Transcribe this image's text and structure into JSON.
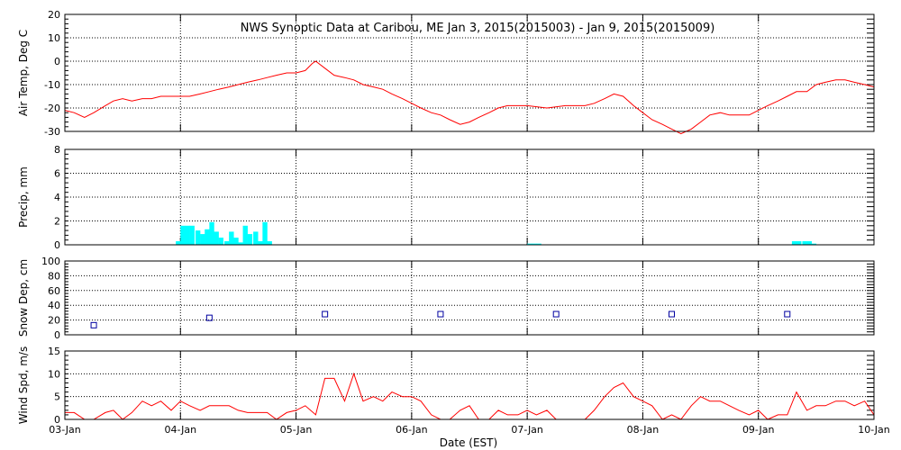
{
  "title": "NWS Synoptic Data at Caribou, ME   Jan  3, 2015(2015003) - Jan  9, 2015(2015009)",
  "xlabel": "Date (EST)",
  "x_tick_labels": [
    "03-Jan",
    "04-Jan",
    "05-Jan",
    "06-Jan",
    "07-Jan",
    "08-Jan",
    "09-Jan",
    "10-Jan"
  ],
  "colors": {
    "temp": "#ff0000",
    "precip": "#00ffff",
    "snow": "#0000a0",
    "wind": "#ff0000",
    "axis": "#000000"
  },
  "chart_data": [
    {
      "type": "line",
      "name": "air_temp",
      "ylabel": "Air Temp, Deg C",
      "ylim": [
        -30,
        20
      ],
      "yticks": [
        20,
        10,
        0,
        -10,
        -20,
        -30
      ],
      "xlim": [
        0,
        7
      ],
      "grid": true,
      "x": [
        0.0,
        0.08,
        0.17,
        0.25,
        0.35,
        0.42,
        0.5,
        0.58,
        0.67,
        0.75,
        0.83,
        0.92,
        1.0,
        1.08,
        1.17,
        1.25,
        1.33,
        1.42,
        1.5,
        1.58,
        1.67,
        1.75,
        1.83,
        1.92,
        2.0,
        2.08,
        2.14,
        2.17,
        2.25,
        2.33,
        2.42,
        2.5,
        2.58,
        2.67,
        2.75,
        2.83,
        2.92,
        3.0,
        3.08,
        3.17,
        3.25,
        3.33,
        3.42,
        3.5,
        3.58,
        3.67,
        3.75,
        3.83,
        3.92,
        4.0,
        4.17,
        4.33,
        4.5,
        4.58,
        4.67,
        4.75,
        4.83,
        4.92,
        5.0,
        5.08,
        5.17,
        5.25,
        5.33,
        5.42,
        5.5,
        5.58,
        5.67,
        5.75,
        5.83,
        5.92,
        6.0,
        6.08,
        6.17,
        6.25,
        6.33,
        6.42,
        6.5,
        6.58,
        6.67,
        6.75,
        6.83,
        6.92,
        7.0
      ],
      "values": [
        -21,
        -22,
        -24,
        -22,
        -19,
        -17,
        -16,
        -17,
        -16,
        -16,
        -15,
        -15,
        -15,
        -15,
        -14,
        -13,
        -12,
        -11,
        -10,
        -9,
        -8,
        -7,
        -6,
        -5,
        -5,
        -4,
        -1,
        0,
        -3,
        -6,
        -7,
        -8,
        -10,
        -11,
        -12,
        -14,
        -16,
        -18,
        -20,
        -22,
        -23,
        -25,
        -27,
        -26,
        -24,
        -22,
        -20,
        -19,
        -19,
        -19,
        -20,
        -19,
        -19,
        -18,
        -16,
        -14,
        -15,
        -19,
        -22,
        -25,
        -27,
        -29,
        -31,
        -29,
        -26,
        -23,
        -22,
        -23,
        -23,
        -23,
        -21,
        -19,
        -17,
        -15,
        -13,
        -13,
        -10,
        -9,
        -8,
        -8,
        -9,
        -10,
        -11
      ]
    },
    {
      "type": "bar",
      "name": "precip",
      "ylabel": "Precip, mm",
      "ylim": [
        0,
        8
      ],
      "yticks": [
        8,
        6,
        4,
        2,
        0
      ],
      "xlim": [
        0,
        7
      ],
      "grid": true,
      "bin_width": 0.042,
      "x": [
        0.96,
        1.0,
        1.04,
        1.08,
        1.13,
        1.17,
        1.21,
        1.25,
        1.29,
        1.33,
        1.38,
        1.42,
        1.46,
        1.5,
        1.54,
        1.58,
        1.63,
        1.67,
        1.71,
        1.75,
        4.0,
        4.04,
        4.08,
        6.29,
        6.33,
        6.38,
        6.42,
        6.46
      ],
      "values": [
        0.3,
        1.6,
        1.6,
        1.6,
        1.2,
        0.9,
        1.3,
        1.9,
        1.1,
        0.6,
        0.3,
        1.1,
        0.6,
        0.2,
        1.6,
        0.9,
        1.1,
        0.3,
        1.9,
        0.3,
        0.1,
        0.1,
        0.1,
        0.3,
        0.3,
        0.3,
        0.3,
        0.1
      ]
    },
    {
      "type": "scatter",
      "name": "snow_depth",
      "ylabel": "Snow Dep, cm",
      "ylim": [
        0,
        100
      ],
      "yticks": [
        100,
        80,
        60,
        40,
        20,
        0
      ],
      "xlim": [
        0,
        7
      ],
      "grid": true,
      "x": [
        0.25,
        1.25,
        2.25,
        3.25,
        4.25,
        5.25,
        6.25
      ],
      "values": [
        13,
        23,
        28,
        28,
        28,
        28,
        28
      ]
    },
    {
      "type": "line",
      "name": "wind_speed",
      "ylabel": "Wind Spd, m/s",
      "ylim": [
        0,
        15
      ],
      "yticks": [
        15,
        10,
        5,
        0
      ],
      "xlim": [
        0,
        7
      ],
      "grid": true,
      "x": [
        0.0,
        0.08,
        0.17,
        0.25,
        0.35,
        0.42,
        0.5,
        0.58,
        0.67,
        0.75,
        0.83,
        0.92,
        1.0,
        1.08,
        1.17,
        1.25,
        1.33,
        1.42,
        1.5,
        1.58,
        1.67,
        1.75,
        1.83,
        1.92,
        2.0,
        2.08,
        2.17,
        2.25,
        2.33,
        2.42,
        2.5,
        2.58,
        2.67,
        2.75,
        2.83,
        2.92,
        3.0,
        3.08,
        3.17,
        3.25,
        3.33,
        3.42,
        3.5,
        3.58,
        3.67,
        3.75,
        3.83,
        3.92,
        4.0,
        4.08,
        4.17,
        4.25,
        4.33,
        4.42,
        4.5,
        4.58,
        4.67,
        4.75,
        4.83,
        4.92,
        5.0,
        5.08,
        5.17,
        5.25,
        5.33,
        5.42,
        5.5,
        5.58,
        5.67,
        5.75,
        5.83,
        5.92,
        6.0,
        6.08,
        6.17,
        6.25,
        6.33,
        6.42,
        6.5,
        6.58,
        6.67,
        6.75,
        6.83,
        6.92,
        7.0
      ],
      "values": [
        1.5,
        1.5,
        0,
        0,
        1.5,
        2,
        0,
        1.5,
        4,
        3,
        4,
        2,
        4,
        3,
        2,
        3,
        3,
        3,
        2,
        1.5,
        1.5,
        1.5,
        0,
        1.5,
        2,
        3,
        1,
        9,
        9,
        4,
        10,
        4,
        5,
        4,
        6,
        5,
        5,
        4,
        1,
        0,
        0,
        2,
        3,
        0,
        0,
        2,
        1,
        1,
        2,
        1,
        2,
        0,
        0,
        0,
        0,
        2,
        5,
        7,
        8,
        5,
        4,
        3,
        0,
        1,
        0,
        3,
        5,
        4,
        4,
        3,
        2,
        1,
        2,
        0,
        1,
        1,
        6,
        2,
        3,
        3,
        4,
        4,
        3,
        4,
        1
      ]
    }
  ]
}
